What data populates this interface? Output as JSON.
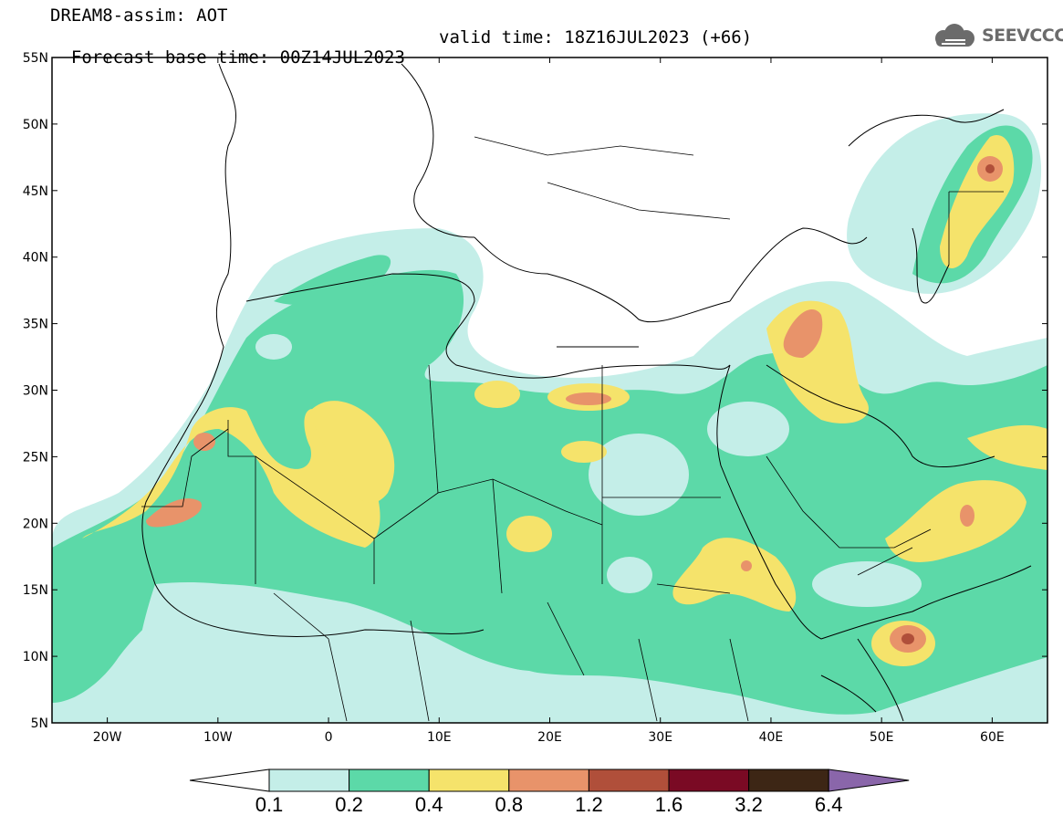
{
  "header": {
    "line1": "DREAM8-assim: AOT",
    "base_time": "Forecast base time: 00Z14JUL2023",
    "valid_time": "valid time: 18Z16JUL2023 (+66)"
  },
  "logo": {
    "text": "SEEVCCC",
    "icon": "cloud-icon"
  },
  "map": {
    "projection": "lat-lon",
    "lon_range": [
      -25,
      65
    ],
    "lat_range": [
      5,
      55
    ],
    "lat_ticks": [
      "55N",
      "50N",
      "45N",
      "40N",
      "35N",
      "30N",
      "25N",
      "20N",
      "15N",
      "10N",
      "5N"
    ],
    "lon_ticks": [
      "20W",
      "10W",
      "0",
      "10E",
      "20E",
      "30E",
      "40E",
      "50E",
      "60E"
    ]
  },
  "colorbar": {
    "labels": [
      "0.1",
      "0.2",
      "0.4",
      "0.8",
      "1.2",
      "1.6",
      "3.2",
      "6.4"
    ],
    "colors": [
      "#ffffff",
      "#c4eee8",
      "#5cd9a8",
      "#f5e36b",
      "#e8936a",
      "#b04f3a",
      "#7a0a24",
      "#3d2615",
      "#8a66aa"
    ]
  },
  "palette": {
    "ocean_border": "#000000",
    "level_0_1": "#c4eee8",
    "level_0_2": "#5cd9a8",
    "level_0_4": "#f5e36b",
    "level_0_8": "#e8936a",
    "level_1_2": "#b04f3a"
  }
}
